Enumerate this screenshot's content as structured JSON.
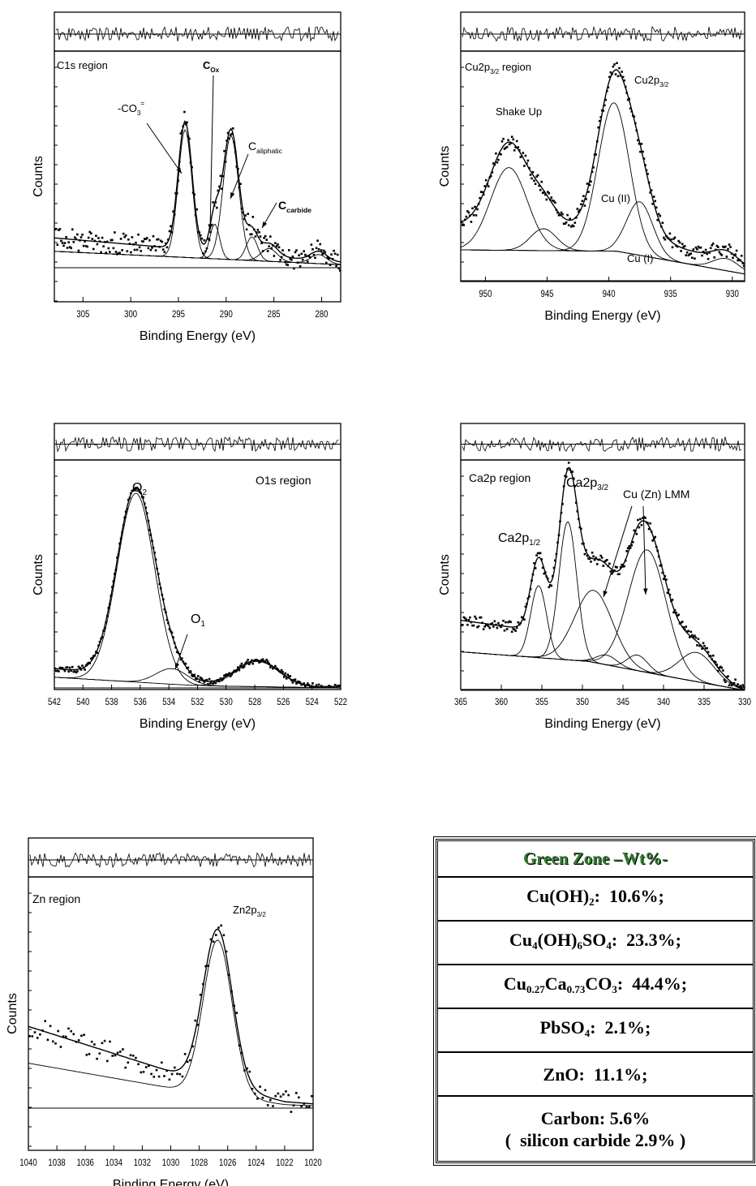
{
  "chart_data": [
    {
      "type": "scatter",
      "title": "C1s region",
      "xlabel": "Binding Energy (eV)",
      "ylabel": "Counts",
      "xlim": [
        308,
        278
      ],
      "xticks": [
        305,
        300,
        295,
        290,
        285,
        280
      ],
      "peaks": [
        {
          "label": "-CO3=",
          "center": 294.3,
          "height": 0.7,
          "fwhm": 1.7
        },
        {
          "label": "COx",
          "center": 291.2,
          "height": 0.19,
          "fwhm": 1.2
        },
        {
          "label": "Caliphatic",
          "center": 289.5,
          "height": 0.68,
          "fwhm": 1.9
        },
        {
          "label": "Ccarbide",
          "center": 287.3,
          "height": 0.13,
          "fwhm": 1.4
        },
        {
          "label": "",
          "center": 285.5,
          "height": 0.07,
          "fwhm": 2.0
        },
        {
          "label": "",
          "center": 280.3,
          "height": 0.05,
          "fwhm": 2.0
        }
      ],
      "annotations": [
        "C1s region",
        "-CO3=",
        "COx",
        "Caliphatic",
        "Ccarbide"
      ]
    },
    {
      "type": "scatter",
      "title": "Cu2p3/2 region",
      "xlabel": "Binding Energy (eV)",
      "ylabel": "Counts",
      "xlim": [
        952,
        929
      ],
      "xticks": [
        950,
        945,
        940,
        935,
        930
      ],
      "peaks": [
        {
          "label": "Shake Up",
          "center": 948.1,
          "height": 0.34,
          "fwhm": 3.5
        },
        {
          "label": "",
          "center": 945.3,
          "height": 0.09,
          "fwhm": 2.5
        },
        {
          "label": "Cu (II)",
          "center": 939.6,
          "height": 0.61,
          "fwhm": 3.0
        },
        {
          "label": "Cu (I)",
          "center": 937.5,
          "height": 0.22,
          "fwhm": 2.5
        },
        {
          "label": "",
          "center": 930.5,
          "height": 0.05,
          "fwhm": 2.5
        }
      ],
      "annotations": [
        "Cu2p3/2 region",
        "Cu2p3/2",
        "Shake Up",
        "Cu (II)",
        "Cu (I)"
      ]
    },
    {
      "type": "scatter",
      "title": "O1s region",
      "xlabel": "Binding Energy (eV)",
      "ylabel": "Counts",
      "xlim": [
        542,
        522
      ],
      "xticks": [
        542,
        540,
        538,
        536,
        534,
        532,
        530,
        528,
        526,
        524,
        522
      ],
      "peaks": [
        {
          "label": "O2",
          "center": 536.3,
          "height": 0.97,
          "fwhm": 3.1
        },
        {
          "label": "O1",
          "center": 533.8,
          "height": 0.08,
          "fwhm": 2.6
        },
        {
          "label": "",
          "center": 527.8,
          "height": 0.13,
          "fwhm": 3.5
        }
      ],
      "annotations": [
        "O2",
        "O1s region",
        "O1"
      ]
    },
    {
      "type": "scatter",
      "title": "Ca2p region",
      "xlabel": "Binding Energy (eV)",
      "ylabel": "Counts",
      "xlim": [
        365,
        330
      ],
      "xticks": [
        365,
        360,
        355,
        350,
        345,
        340,
        335,
        330
      ],
      "peaks": [
        {
          "label": "Ca2p1/2",
          "center": 355.4,
          "height": 0.37,
          "fwhm": 2.3
        },
        {
          "label": "Ca2p3/2",
          "center": 351.8,
          "height": 0.71,
          "fwhm": 2.6
        },
        {
          "label": "Cu (Zn) LMM",
          "center": 348.6,
          "height": 0.37,
          "fwhm": 5.5
        },
        {
          "label": "",
          "center": 347.0,
          "height": 0.05,
          "fwhm": 3.0
        },
        {
          "label": "",
          "center": 343.2,
          "height": 0.08,
          "fwhm": 3.0
        },
        {
          "label": "Cu (Zn) LMM",
          "center": 342.0,
          "height": 0.63,
          "fwhm": 5.5
        },
        {
          "label": "",
          "center": 335.9,
          "height": 0.15,
          "fwhm": 5.0
        }
      ],
      "annotations": [
        "Ca2p region",
        "Ca2p3/2",
        "Ca2p1/2",
        "Cu (Zn) LMM"
      ]
    },
    {
      "type": "scatter",
      "title": "Zn region",
      "xlabel": "Binding Energy (eV)",
      "ylabel": "Counts",
      "xlim": [
        1040,
        1020
      ],
      "xticks": [
        1040,
        1038,
        1036,
        1034,
        1032,
        1030,
        1028,
        1026,
        1024,
        1022,
        1020
      ],
      "peaks": [
        {
          "label": "Zn2p3/2",
          "center": 1026.7,
          "height": 0.72,
          "fwhm": 2.4
        }
      ],
      "annotations": [
        "Zn region",
        "Zn2p3/2"
      ]
    }
  ],
  "table": {
    "header": "Green Zone –Wt%-",
    "rows": [
      "Cu(OH)2: 10.6%;",
      "Cu4(OH)6SO4: 23.3%;",
      "Cu0.27Ca0.73CO3: 44.4%;",
      "PbSO4: 2.1%;",
      "ZnO: 11.1%;",
      "Carbon: 5.6% ( silicon carbide 2.9% )"
    ]
  },
  "colors": {
    "lines": "#000000",
    "header_green": "#2f7d2f"
  }
}
